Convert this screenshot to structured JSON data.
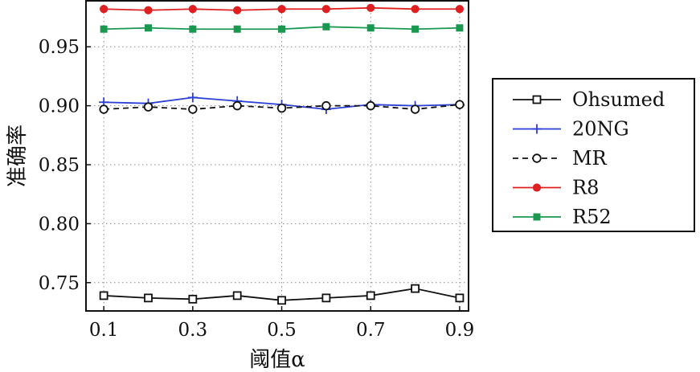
{
  "chart_data": {
    "type": "line",
    "xlabel": "阈值α",
    "ylabel": "准确率",
    "x": [
      0.1,
      0.2,
      0.3,
      0.4,
      0.5,
      0.6,
      0.7,
      0.8,
      0.9
    ],
    "xticks": [
      "0.1",
      "0.3",
      "0.5",
      "0.7",
      "0.9"
    ],
    "yticks": [
      "0.75",
      "0.80",
      "0.85",
      "0.90",
      "0.95"
    ],
    "xlim": [
      0.06,
      0.92
    ],
    "ylim": [
      0.726,
      0.989
    ],
    "grid": true,
    "legend_position": "right",
    "series": [
      {
        "name": "Ohsumed",
        "color": "#111111",
        "marker": "square-open",
        "dash": "solid",
        "values": [
          0.739,
          0.737,
          0.736,
          0.739,
          0.735,
          0.737,
          0.739,
          0.745,
          0.737
        ]
      },
      {
        "name": "20NG",
        "color": "#2b3fd6",
        "marker": "plus",
        "dash": "solid",
        "values": [
          0.903,
          0.902,
          0.907,
          0.904,
          0.901,
          0.897,
          0.901,
          0.9,
          0.901
        ]
      },
      {
        "name": "MR",
        "color": "#111111",
        "marker": "circle-open",
        "dash": "dashed",
        "values": [
          0.897,
          0.899,
          0.897,
          0.9,
          0.898,
          0.9,
          0.9,
          0.897,
          0.901
        ]
      },
      {
        "name": "R8",
        "color": "#e02020",
        "marker": "circle-filled",
        "dash": "solid",
        "values": [
          0.982,
          0.981,
          0.982,
          0.981,
          0.982,
          0.982,
          0.983,
          0.982,
          0.982
        ]
      },
      {
        "name": "R52",
        "color": "#1a9850",
        "marker": "square-filled",
        "dash": "solid",
        "values": [
          0.965,
          0.966,
          0.965,
          0.965,
          0.965,
          0.967,
          0.966,
          0.965,
          0.966
        ]
      }
    ]
  }
}
